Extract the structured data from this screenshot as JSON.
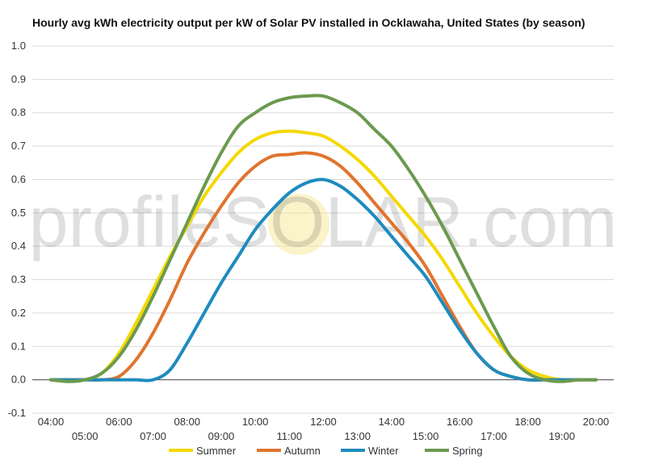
{
  "chart_data": {
    "type": "line",
    "title": "Hourly avg kWh electricity output per kW of Solar PV installed in Ocklawaha, United States (by season)",
    "watermark": "profileSOLAR.com",
    "x": [
      "04:00",
      "04:30",
      "05:00",
      "05:30",
      "06:00",
      "06:30",
      "07:00",
      "07:30",
      "08:00",
      "08:30",
      "09:00",
      "09:30",
      "10:00",
      "10:30",
      "11:00",
      "11:30",
      "12:00",
      "12:30",
      "13:00",
      "13:30",
      "14:00",
      "14:30",
      "15:00",
      "15:30",
      "16:00",
      "16:30",
      "17:00",
      "17:30",
      "18:00",
      "18:30",
      "19:00",
      "19:30",
      "20:00"
    ],
    "x_tick_labels": [
      "04:00",
      "05:00",
      "06:00",
      "07:00",
      "08:00",
      "09:00",
      "10:00",
      "11:00",
      "12:00",
      "13:00",
      "14:00",
      "15:00",
      "16:00",
      "17:00",
      "18:00",
      "19:00",
      "20:00"
    ],
    "ylim": [
      -0.1,
      1.0
    ],
    "y_ticks": [
      "-0.1",
      "0.0",
      "0.1",
      "0.2",
      "0.3",
      "0.4",
      "0.5",
      "0.6",
      "0.7",
      "0.8",
      "0.9",
      "1.0"
    ],
    "grid": true,
    "legend_position": "bottom",
    "series": [
      {
        "name": "Summer",
        "color": "#f5d800",
        "values": [
          0,
          0,
          0,
          0.02,
          0.08,
          0.17,
          0.27,
          0.37,
          0.46,
          0.55,
          0.62,
          0.68,
          0.72,
          0.74,
          0.745,
          0.74,
          0.73,
          0.7,
          0.66,
          0.61,
          0.55,
          0.49,
          0.43,
          0.36,
          0.28,
          0.2,
          0.13,
          0.07,
          0.03,
          0.01,
          0,
          0,
          0
        ]
      },
      {
        "name": "Autumn",
        "color": "#e0742e",
        "values": [
          0,
          0,
          0,
          0,
          0.01,
          0.06,
          0.14,
          0.24,
          0.35,
          0.44,
          0.52,
          0.59,
          0.64,
          0.67,
          0.675,
          0.68,
          0.67,
          0.64,
          0.59,
          0.53,
          0.47,
          0.41,
          0.34,
          0.25,
          0.16,
          0.08,
          0.03,
          0.01,
          0,
          0,
          0,
          0,
          0
        ]
      },
      {
        "name": "Winter",
        "color": "#1e8bbf",
        "values": [
          0,
          0,
          0,
          0,
          0,
          0,
          0,
          0.03,
          0.11,
          0.2,
          0.29,
          0.37,
          0.45,
          0.51,
          0.56,
          0.59,
          0.6,
          0.58,
          0.54,
          0.49,
          0.43,
          0.37,
          0.31,
          0.23,
          0.15,
          0.08,
          0.03,
          0.01,
          0,
          0,
          0,
          0,
          0
        ]
      },
      {
        "name": "Spring",
        "color": "#6b9a4f",
        "values": [
          0,
          -0.005,
          0,
          0.02,
          0.07,
          0.15,
          0.25,
          0.36,
          0.47,
          0.58,
          0.68,
          0.76,
          0.8,
          0.83,
          0.845,
          0.85,
          0.85,
          0.83,
          0.8,
          0.75,
          0.7,
          0.63,
          0.55,
          0.46,
          0.36,
          0.26,
          0.16,
          0.07,
          0.02,
          0,
          -0.005,
          0,
          0
        ]
      }
    ]
  }
}
